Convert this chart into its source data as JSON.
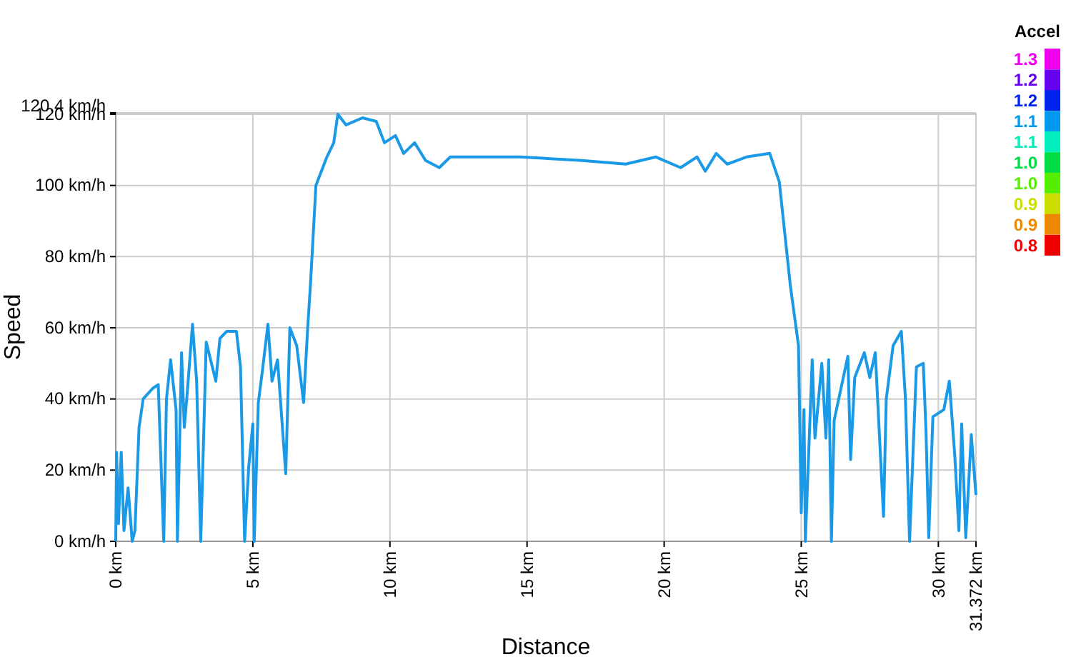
{
  "chart_data": {
    "type": "line",
    "xlabel": "Distance",
    "ylabel": "Speed",
    "clabel": "Accel",
    "clim": [
      0.772,
      1.328
    ],
    "cticks": [
      {
        "value": 1.3,
        "label": "1.3"
      },
      {
        "value": 1.244,
        "label": "1.2"
      },
      {
        "value": 1.189,
        "label": "1.2"
      },
      {
        "value": 1.133,
        "label": "1.1"
      },
      {
        "value": 1.078,
        "label": "1.1"
      },
      {
        "value": 1.022,
        "label": "1.0"
      },
      {
        "value": 0.967,
        "label": "1.0"
      },
      {
        "value": 0.911,
        "label": "0.9"
      },
      {
        "value": 0.856,
        "label": "0.9"
      },
      {
        "value": 0.8,
        "label": "0.8"
      }
    ],
    "colors": [
      "#ee00ee",
      "#6600ee",
      "#0022ee",
      "#0099ee",
      "#00eebb",
      "#00dd44",
      "#55ee00",
      "#ccdd00",
      "#ee8800",
      "#ee0000"
    ],
    "xlim": [
      0,
      31.372
    ],
    "ylim": [
      0,
      120.4
    ],
    "xticks": [
      {
        "value": 0,
        "label": "0 km"
      },
      {
        "value": 5,
        "label": "5 km"
      },
      {
        "value": 10,
        "label": "10 km"
      },
      {
        "value": 15,
        "label": "15 km"
      },
      {
        "value": 20,
        "label": "20 km"
      },
      {
        "value": 25,
        "label": "25 km"
      },
      {
        "value": 30,
        "label": "30 km"
      },
      {
        "value": 31.372,
        "label": "31.372 km"
      }
    ],
    "yticks": [
      {
        "value": 0,
        "label": "0 km/h"
      },
      {
        "value": 20,
        "label": "20 km/h"
      },
      {
        "value": 40,
        "label": "40 km/h"
      },
      {
        "value": 60,
        "label": "60 km/h"
      },
      {
        "value": 80,
        "label": "80 km/h"
      },
      {
        "value": 100,
        "label": "100 km/h"
      },
      {
        "value": 120,
        "label": "120 km/h"
      },
      {
        "value": 120.4,
        "label": "120.4 km/h"
      }
    ],
    "grid": true,
    "marker": "none",
    "line_style": "solid",
    "series": [
      {
        "color": "#1a9ae6",
        "x": [
          0,
          0.03,
          0.1,
          0.2,
          0.3,
          0.45,
          0.6,
          0.7,
          0.85,
          1.0,
          1.35,
          1.55,
          1.75,
          1.85,
          2.0,
          2.2,
          2.25,
          2.4,
          2.5,
          2.6,
          2.8,
          2.95,
          3.1,
          3.3,
          3.65,
          3.8,
          4.05,
          4.4,
          4.55,
          4.7,
          4.85,
          5.0,
          5.05,
          5.2,
          5.35,
          5.55,
          5.7,
          5.9,
          6.2,
          6.35,
          6.6,
          6.85,
          7.0,
          7.1,
          7.3,
          7.7,
          7.95,
          8.1,
          8.4,
          9.0,
          9.5,
          9.8,
          10.2,
          10.5,
          10.9,
          11.3,
          11.8,
          12.2,
          14.75,
          17.0,
          18.6,
          19.7,
          20.6,
          21.2,
          21.5,
          21.9,
          22.3,
          23.0,
          23.85,
          24.2,
          24.6,
          24.9,
          25.0,
          25.1,
          25.15,
          25.4,
          25.5,
          25.75,
          25.9,
          26.0,
          26.1,
          26.2,
          26.7,
          26.8,
          26.95,
          27.3,
          27.5,
          27.7,
          28.0,
          28.1,
          28.35,
          28.65,
          28.8,
          28.95,
          29.2,
          29.45,
          29.55,
          29.65,
          29.8,
          30.2,
          30.4,
          30.6,
          30.75,
          30.85,
          31.0,
          31.2,
          31.372
        ],
        "values": [
          0,
          25,
          5,
          25,
          3,
          15,
          0,
          3,
          32,
          40,
          43,
          44,
          0,
          40,
          51,
          37,
          0,
          53,
          32,
          41,
          61,
          45,
          0,
          56,
          45,
          57,
          59,
          59,
          49,
          0,
          21,
          33,
          0,
          39,
          48,
          61,
          45,
          51,
          19,
          60,
          55,
          39,
          60,
          72,
          100,
          108,
          112,
          120,
          117,
          119,
          118,
          112,
          114,
          109,
          112,
          107,
          105,
          108,
          108,
          107,
          106,
          108,
          105,
          108,
          104,
          109,
          106,
          108,
          109,
          101,
          72,
          55,
          8,
          37,
          0,
          51,
          29,
          50,
          29,
          51,
          0,
          34,
          52,
          23,
          46,
          53,
          46,
          53,
          7,
          40,
          55,
          59,
          40,
          0,
          49,
          50,
          31,
          1,
          35,
          37,
          45,
          24,
          3,
          33,
          1,
          30,
          13
        ]
      }
    ]
  }
}
